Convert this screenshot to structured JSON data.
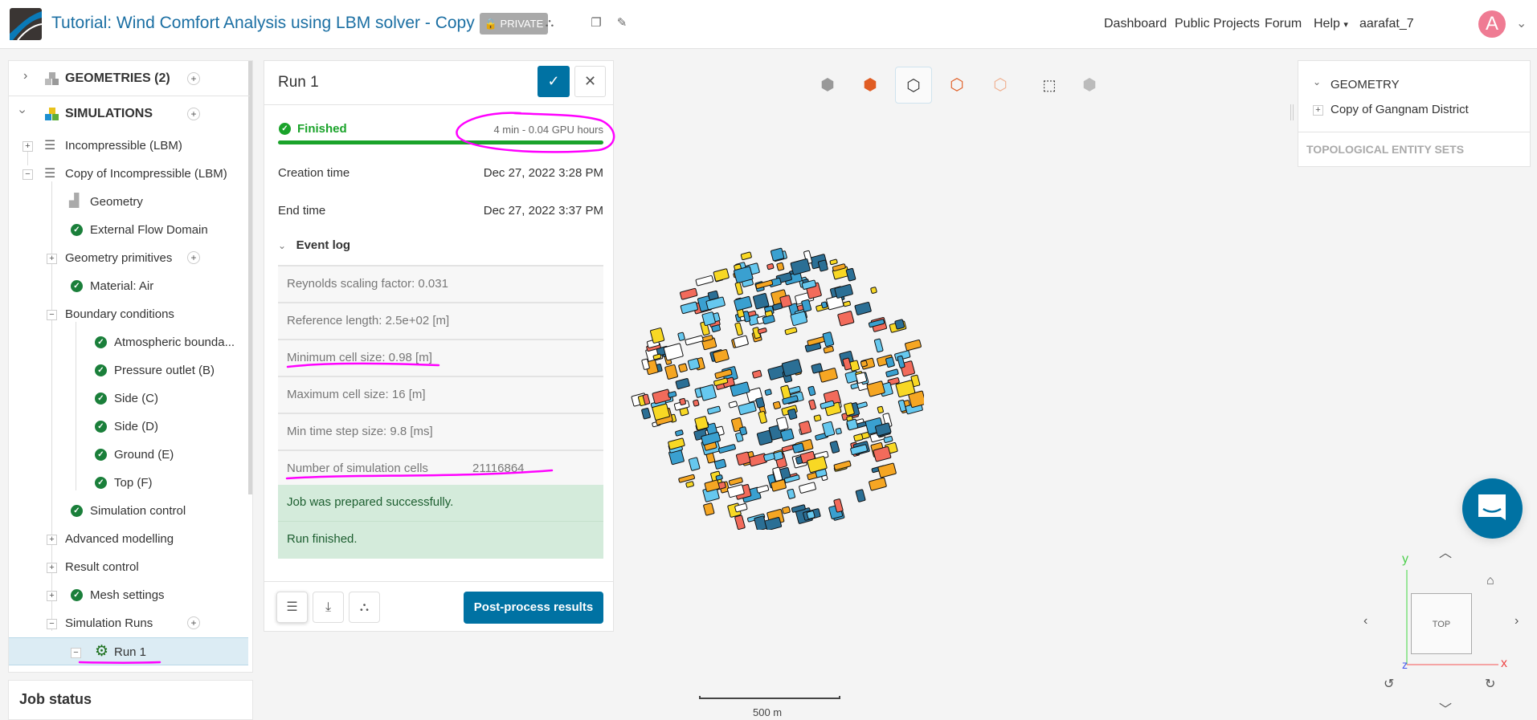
{
  "header": {
    "title": "Tutorial: Wind Comfort Analysis using LBM solver - Copy",
    "badge": "PRIVATE",
    "icons": [
      "share-icon",
      "copy-icon",
      "edit-icon"
    ],
    "nav": [
      "Dashboard",
      "Public Projects",
      "Forum",
      "Help"
    ],
    "username": "aarafat_7",
    "avatar_letter": "A"
  },
  "sidebar": {
    "geometries": "GEOMETRIES (2)",
    "simulations": "SIMULATIONS",
    "items": [
      {
        "label": "Incompressible (LBM)",
        "level": 1,
        "toggle": "+",
        "icon": "simulation-icon"
      },
      {
        "label": "Copy of Incompressible (LBM)",
        "level": 1,
        "toggle": "−",
        "icon": "simulation-icon"
      },
      {
        "label": "Geometry",
        "level": 2,
        "icon": "geometry-check-icon"
      },
      {
        "label": "External Flow Domain",
        "level": 2,
        "icon": "check-icon"
      },
      {
        "label": "Geometry primitives",
        "level": 2,
        "toggle": "+",
        "plus": true
      },
      {
        "label": "Material: Air",
        "level": 2,
        "icon": "check-icon"
      },
      {
        "label": "Boundary conditions",
        "level": 2,
        "toggle": "−"
      },
      {
        "label": "Atmospheric bounda...",
        "level": 3,
        "icon": "check-icon"
      },
      {
        "label": "Pressure outlet (B)",
        "level": 3,
        "icon": "check-icon"
      },
      {
        "label": "Side (C)",
        "level": 3,
        "icon": "check-icon"
      },
      {
        "label": "Side (D)",
        "level": 3,
        "icon": "check-icon"
      },
      {
        "label": "Ground (E)",
        "level": 3,
        "icon": "check-icon"
      },
      {
        "label": "Top (F)",
        "level": 3,
        "icon": "check-icon"
      },
      {
        "label": "Simulation control",
        "level": 2,
        "icon": "check-icon"
      },
      {
        "label": "Advanced modelling",
        "level": 2,
        "toggle": "+"
      },
      {
        "label": "Result control",
        "level": 2,
        "toggle": "+"
      },
      {
        "label": "Mesh settings",
        "level": 2,
        "toggle": "+",
        "icon": "check-icon"
      },
      {
        "label": "Simulation Runs",
        "level": 2,
        "toggle": "−",
        "plus": true
      },
      {
        "label": "Run 1",
        "level": 3,
        "toggle": "−",
        "icon": "gear-icon",
        "selected": true
      }
    ],
    "job_status": "Job status"
  },
  "run_panel": {
    "title": "Run 1",
    "status": "Finished",
    "duration": "4 min - 0.04 GPU hours",
    "progress_percent": 100,
    "creation_label": "Creation time",
    "creation_value": "Dec 27, 2022 3:28 PM",
    "end_label": "End time",
    "end_value": "Dec 27, 2022 3:37 PM",
    "event_log_label": "Event log",
    "log": [
      "Reynolds scaling factor: 0.031",
      "Reference length: 2.5e+02 [m]",
      "Minimum cell size: 0.98 [m]",
      "Maximum cell size: 16 [m]",
      "Min time step size: 9.8 [ms]"
    ],
    "cells_label": "Number of simulation cells",
    "cells_value": "21116864",
    "messages": [
      "Job was prepared successfully.",
      "Run finished."
    ],
    "post_process": "Post-process results"
  },
  "right_panel": {
    "geometry": "GEOMETRY",
    "item": "Copy of Gangnam District",
    "topo": "TOPOLOGICAL ENTITY SETS"
  },
  "viewer": {
    "scale_label": "500 m",
    "cube_label": "TOP",
    "axes": {
      "x": "x",
      "y": "y",
      "z": "z"
    }
  },
  "colors": {
    "accent": "#0072a3",
    "success": "#1aa32a",
    "annotation": "#ff00ff"
  }
}
